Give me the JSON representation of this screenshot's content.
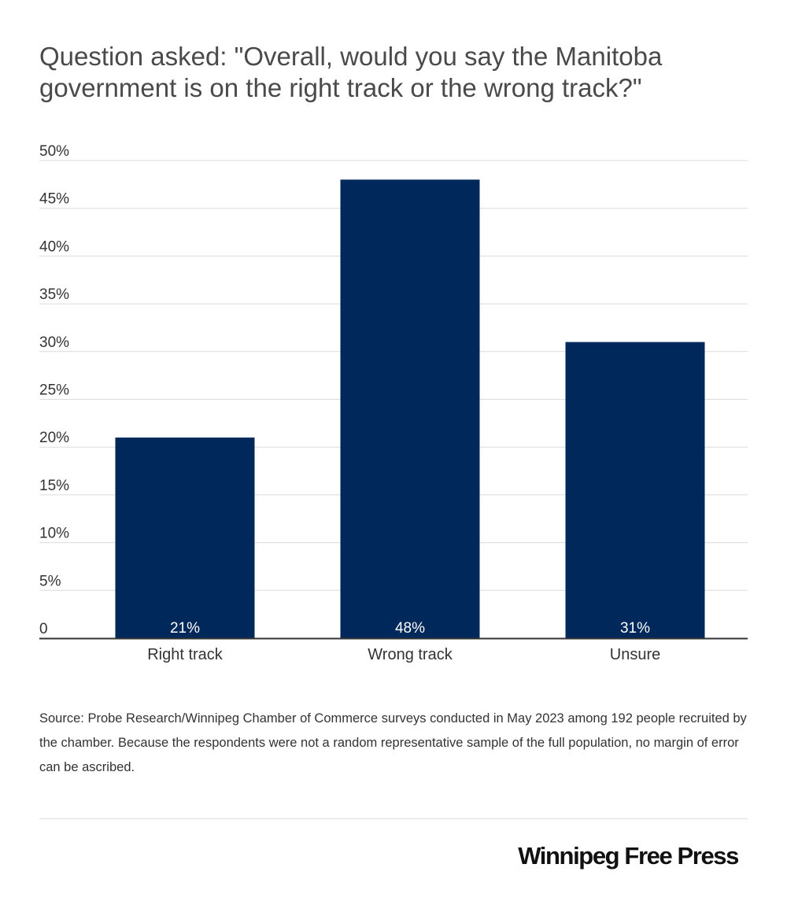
{
  "title": "Question asked: \"Overall, would you say the Manitoba government is on the right track or the wrong track?\"",
  "source": "Source: Probe Research/Winnipeg Chamber of Commerce surveys conducted in May 2023 among 192 people recruited by the chamber. Because the respondents were not a random representative sample of the full population, no margin of error can be ascribed.",
  "brand": "Winnipeg Free Press",
  "colors": {
    "bar": "#00285a",
    "grid": "#dcdcdc",
    "axis": "#333333",
    "data_label": "#ffffff"
  },
  "chart_data": {
    "type": "bar",
    "categories": [
      "Right track",
      "Wrong track",
      "Unsure"
    ],
    "values": [
      21,
      48,
      31
    ],
    "data_labels": [
      "21%",
      "48%",
      "31%"
    ],
    "yticks": [
      0,
      5,
      10,
      15,
      20,
      25,
      30,
      35,
      40,
      45,
      50
    ],
    "ytick_labels": [
      "0",
      "5%",
      "10%",
      "15%",
      "20%",
      "25%",
      "30%",
      "35%",
      "40%",
      "45%",
      "50%"
    ],
    "ylim": [
      0,
      50
    ],
    "grid": true,
    "legend": false,
    "xlabel": "",
    "ylabel": ""
  }
}
